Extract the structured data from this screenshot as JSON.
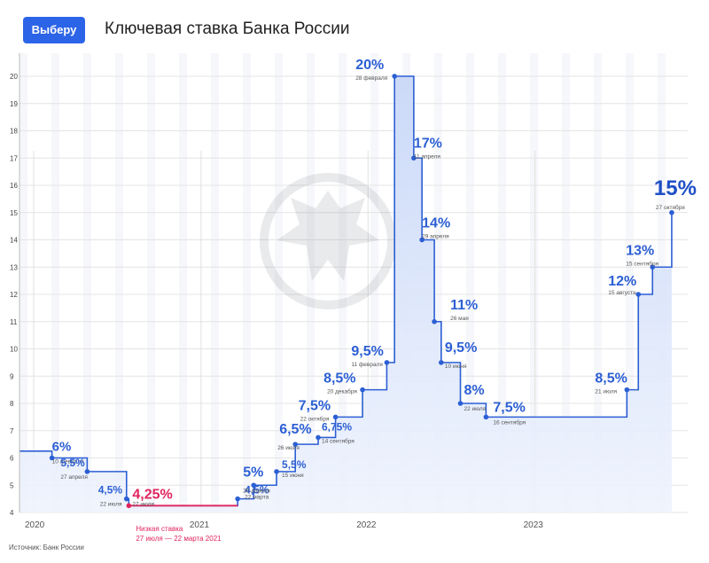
{
  "logo": "Выберу",
  "title": "Ключевая ставка Банка России",
  "source": "Источник: Банк России",
  "highlight": {
    "value_label": "4,25%",
    "caption_title": "Низкая ставка",
    "caption_period": "27 июля — 22 марта 2021"
  },
  "colors": {
    "accent": "#2c5fd4",
    "fill": "#dbe6fb",
    "highlight": "#e0245e",
    "highlight_band": "#fbd5e2",
    "grid": "#e4e4e4"
  },
  "chart_data": {
    "type": "area",
    "title": "Ключевая ставка Банка России",
    "y_ticks": [
      4,
      5,
      6,
      7,
      8,
      9,
      10,
      11,
      12,
      13,
      14,
      15,
      16,
      17,
      18,
      19,
      20
    ],
    "ylim": [
      4,
      20
    ],
    "x_labels": [
      "2020",
      "2021",
      "2022",
      "2023"
    ],
    "grid": true,
    "points": [
      {
        "date": "2020-02-10",
        "rate": 6,
        "label": "6%",
        "date_label": "10 февраля"
      },
      {
        "date": "2020-04-27",
        "rate": 5.5,
        "label": "5,5%",
        "date_label": "27 апреля"
      },
      {
        "date": "2020-07-22",
        "rate": 4.5,
        "label": "4,5%",
        "date_label": "22 июля"
      },
      {
        "date": "2020-07-27",
        "rate": 4.25,
        "label": "4,25%",
        "date_label": "27 июля"
      },
      {
        "date": "2021-03-22",
        "rate": 4.5,
        "label": "4,5%",
        "date_label": "22 марта"
      },
      {
        "date": "2021-04-26",
        "rate": 5,
        "label": "5%",
        "date_label": "26 апреля"
      },
      {
        "date": "2021-06-15",
        "rate": 5.5,
        "label": "5,5%",
        "date_label": "15 июня"
      },
      {
        "date": "2021-07-26",
        "rate": 6.5,
        "label": "6,5%",
        "date_label": "26 июля"
      },
      {
        "date": "2021-09-14",
        "rate": 6.75,
        "label": "6,75%",
        "date_label": "14 сентября"
      },
      {
        "date": "2021-10-22",
        "rate": 7.5,
        "label": "7,5%",
        "date_label": "22 октября"
      },
      {
        "date": "2021-12-20",
        "rate": 8.5,
        "label": "8,5%",
        "date_label": "20 декабря"
      },
      {
        "date": "2022-02-11",
        "rate": 9.5,
        "label": "9,5%",
        "date_label": "11 февраля"
      },
      {
        "date": "2022-02-28",
        "rate": 20,
        "label": "20%",
        "date_label": "28 февраля"
      },
      {
        "date": "2022-04-11",
        "rate": 17,
        "label": "17%",
        "date_label": "11 апреля"
      },
      {
        "date": "2022-04-29",
        "rate": 14,
        "label": "14%",
        "date_label": "29 апреля"
      },
      {
        "date": "2022-05-26",
        "rate": 11,
        "label": "11%",
        "date_label": "26 мая"
      },
      {
        "date": "2022-06-10",
        "rate": 9.5,
        "label": "9,5%",
        "date_label": "10 июня"
      },
      {
        "date": "2022-07-22",
        "rate": 8,
        "label": "8%",
        "date_label": "22 июля"
      },
      {
        "date": "2022-09-16",
        "rate": 7.5,
        "label": "7,5%",
        "date_label": "16 сентября"
      },
      {
        "date": "2023-07-21",
        "rate": 8.5,
        "label": "8,5%",
        "date_label": "21 июля"
      },
      {
        "date": "2023-08-15",
        "rate": 12,
        "label": "12%",
        "date_label": "15 августа"
      },
      {
        "date": "2023-09-15",
        "rate": 13,
        "label": "13%",
        "date_label": "15 сентября"
      },
      {
        "date": "2023-10-27",
        "rate": 15,
        "label": "15%",
        "date_label": "27 октября"
      }
    ]
  }
}
